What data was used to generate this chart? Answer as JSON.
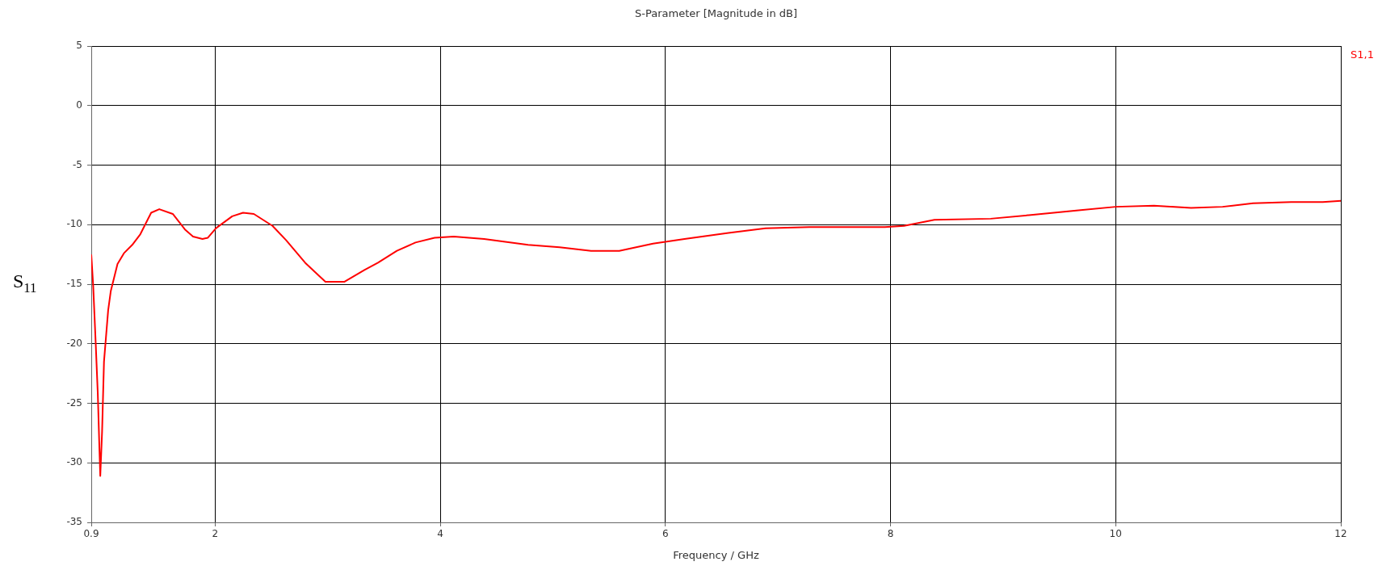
{
  "chart_data": {
    "type": "line",
    "title": "S-Parameter [Magnitude in dB]",
    "xlabel": "Frequency / GHz",
    "ylabel": "S$_{11}$",
    "xlim": [
      0.9,
      12
    ],
    "xticks": [
      0.9,
      2,
      4,
      6,
      8,
      10,
      12
    ],
    "ylim": [
      -35,
      5
    ],
    "yticks": [
      5,
      0,
      -5,
      -10,
      -15,
      -20,
      -25,
      -30,
      -35
    ],
    "grid": true,
    "legend": "top right",
    "marker": "none",
    "line_style": "solid",
    "series": [
      {
        "name": "S1,1",
        "color": "#ff0000",
        "x": [
          0.9,
          0.917,
          0.94,
          0.958,
          0.972,
          0.98,
          0.996,
          1.013,
          1.05,
          1.073,
          1.133,
          1.19,
          1.264,
          1.336,
          1.432,
          1.504,
          1.624,
          1.732,
          1.804,
          1.888,
          1.936,
          2.008,
          2.152,
          2.248,
          2.344,
          2.51,
          2.63,
          2.8,
          2.98,
          3.147,
          3.327,
          3.447,
          3.615,
          3.78,
          3.95,
          4.12,
          4.39,
          4.78,
          5.06,
          5.34,
          5.59,
          5.89,
          6.17,
          6.56,
          6.89,
          7.28,
          7.67,
          7.95,
          8.12,
          8.39,
          8.89,
          9.23,
          9.67,
          10.0,
          10.34,
          10.67,
          10.95,
          11.22,
          11.56,
          11.84,
          12.0
        ],
        "values": [
          -12.5,
          -15.1,
          -20.1,
          -24.2,
          -28.7,
          -31.1,
          -27.4,
          -21.5,
          -17.2,
          -15.6,
          -13.3,
          -12.4,
          -11.7,
          -10.8,
          -9.0,
          -8.7,
          -9.1,
          -10.4,
          -11.0,
          -11.2,
          -11.1,
          -10.3,
          -9.3,
          -9.0,
          -9.1,
          -10.1,
          -11.3,
          -13.2,
          -14.8,
          -14.8,
          -13.8,
          -13.2,
          -12.2,
          -11.5,
          -11.1,
          -11.0,
          -11.2,
          -11.7,
          -11.9,
          -12.2,
          -12.2,
          -11.6,
          -11.2,
          -10.7,
          -10.3,
          -10.2,
          -10.2,
          -10.2,
          -10.1,
          -9.6,
          -9.5,
          -9.2,
          -8.8,
          -8.5,
          -8.4,
          -8.6,
          -8.5,
          -8.2,
          -8.1,
          -8.1,
          -8.0
        ]
      }
    ]
  }
}
